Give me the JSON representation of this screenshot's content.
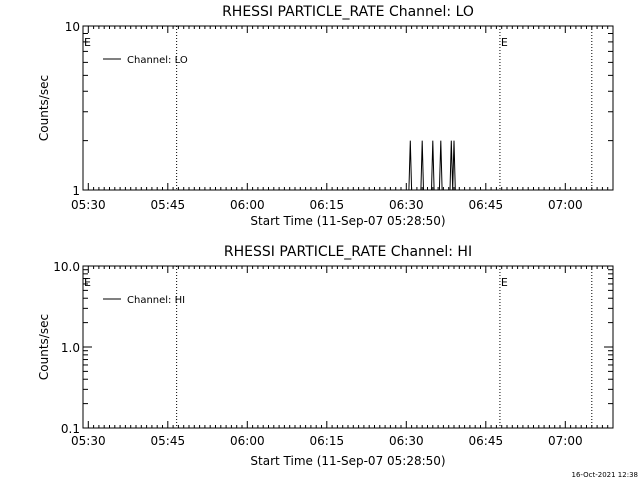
{
  "chart_data": [
    {
      "type": "line",
      "title": "RHESSI PARTICLE_RATE Channel: LO",
      "xlabel": "Start Time (11-Sep-07 05:28:50)",
      "ylabel": "Counts/sec",
      "yscale": "log",
      "ylim": [
        1,
        10
      ],
      "ytick_labels": [
        "1",
        "10"
      ],
      "xlim": [
        "05:29",
        "07:09"
      ],
      "xtick_labels": [
        "05:30",
        "05:45",
        "06:00",
        "06:15",
        "06:30",
        "06:45",
        "07:00"
      ],
      "legend": "top-left",
      "grid": false,
      "series": [
        {
          "name": "Channel: LO",
          "color": "#000000",
          "points": [
            [
              "06:30:30",
              1
            ],
            [
              "06:30:45",
              2
            ],
            [
              "06:31:00",
              1
            ],
            [
              "06:32:45",
              1
            ],
            [
              "06:33:00",
              2
            ],
            [
              "06:33:15",
              1
            ],
            [
              "06:34:45",
              1
            ],
            [
              "06:35:00",
              2
            ],
            [
              "06:35:15",
              1
            ],
            [
              "06:36:15",
              1
            ],
            [
              "06:36:30",
              2
            ],
            [
              "06:36:45",
              1
            ],
            [
              "06:38:15",
              1
            ],
            [
              "06:38:30",
              2
            ],
            [
              "06:38:45",
              1
            ],
            [
              "06:39:00",
              2
            ],
            [
              "06:39:15",
              1
            ]
          ]
        }
      ],
      "vlines": [
        "05:46:40",
        "06:47:40",
        "07:05:00"
      ],
      "markers": [
        {
          "label": "E",
          "at": "05:29"
        },
        {
          "label": "E",
          "at": "06:47:40"
        }
      ]
    },
    {
      "type": "line",
      "title": "RHESSI PARTICLE_RATE Channel: HI",
      "xlabel": "Start Time (11-Sep-07 05:28:50)",
      "ylabel": "Counts/sec",
      "yscale": "log",
      "ylim": [
        0.1,
        10
      ],
      "ytick_labels": [
        "0.1",
        "1.0",
        "10.0"
      ],
      "xlim": [
        "05:29",
        "07:09"
      ],
      "xtick_labels": [
        "05:30",
        "05:45",
        "06:00",
        "06:15",
        "06:30",
        "06:45",
        "07:00"
      ],
      "legend": "top-left",
      "grid": false,
      "series": [
        {
          "name": "Channel: HI",
          "color": "#000000",
          "points": []
        }
      ],
      "vlines": [
        "05:46:40",
        "06:47:40",
        "07:05:00"
      ],
      "markers": [
        {
          "label": "E",
          "at": "05:29"
        },
        {
          "label": "E",
          "at": "06:47:40"
        }
      ]
    }
  ],
  "timestamp": "16-Oct-2021 12:38"
}
